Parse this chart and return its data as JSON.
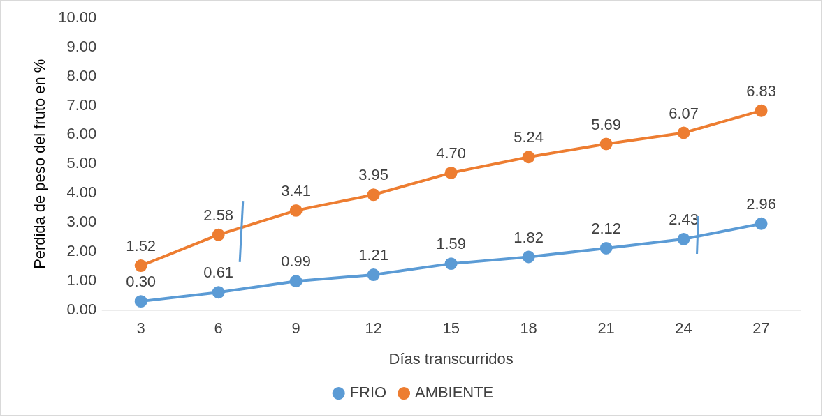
{
  "chart_data": {
    "type": "line",
    "xlabel": "Días transcurridos",
    "ylabel": "Perdida de peso del fruto en %",
    "categories": [
      "3",
      "6",
      "9",
      "12",
      "15",
      "18",
      "21",
      "24",
      "27"
    ],
    "series": [
      {
        "name": "FRIO",
        "color": "#5b9bd5",
        "values": [
          0.3,
          0.61,
          0.99,
          1.21,
          1.59,
          1.82,
          2.12,
          2.43,
          2.96
        ],
        "value_labels": [
          "0.30",
          "0.61",
          "0.99",
          "1.21",
          "1.59",
          "1.82",
          "2.12",
          "2.43",
          "2.96"
        ]
      },
      {
        "name": "AMBIENTE",
        "color": "#ed7d31",
        "values": [
          1.52,
          2.58,
          3.41,
          3.95,
          4.7,
          5.24,
          5.69,
          6.07,
          6.83
        ],
        "value_labels": [
          "1.52",
          "2.58",
          "3.41",
          "3.95",
          "4.70",
          "5.24",
          "5.69",
          "6.07",
          "6.83"
        ]
      }
    ],
    "ylim": [
      0,
      10
    ],
    "yticks": [
      {
        "value": 0,
        "label": "0.00"
      },
      {
        "value": 1,
        "label": "1.00"
      },
      {
        "value": 2,
        "label": "2.00"
      },
      {
        "value": 3,
        "label": "3.00"
      },
      {
        "value": 4,
        "label": "4.00"
      },
      {
        "value": 5,
        "label": "5.00"
      },
      {
        "value": 6,
        "label": "6.00"
      },
      {
        "value": 7,
        "label": "7.00"
      },
      {
        "value": 8,
        "label": "8.00"
      },
      {
        "value": 9,
        "label": "9.00"
      },
      {
        "value": 10,
        "label": "10.00"
      }
    ],
    "grid": false,
    "legend": "bottom",
    "marker": "circle",
    "line_style": "solid"
  }
}
